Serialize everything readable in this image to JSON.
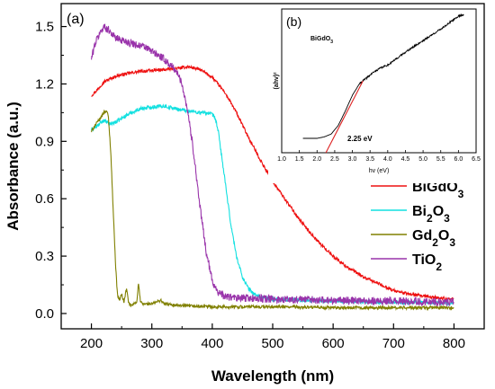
{
  "chart_data": [
    {
      "type": "line",
      "panel_label": "(a)",
      "xlabel": "Wavelength (nm)",
      "ylabel": "Absorbance (a.u.)",
      "xlim": [
        150,
        850
      ],
      "ylim": [
        -0.08,
        1.62
      ],
      "x_ticks": [
        200,
        300,
        400,
        500,
        600,
        700,
        800
      ],
      "x_tick_labels": [
        "200",
        "300",
        "400",
        "500",
        "600",
        "700",
        "800"
      ],
      "y_ticks": [
        0.0,
        0.3,
        0.6,
        0.9,
        1.2,
        1.5
      ],
      "y_tick_labels": [
        "0.0",
        "0.3",
        "0.6",
        "0.9",
        "1.2",
        "1.5"
      ],
      "grid": false,
      "legend_position": "right",
      "series": [
        {
          "name": "BiGdO3",
          "label": {
            "main": "BiGdO",
            "sub": "3"
          },
          "color": "#ee1111",
          "noise": 0.008,
          "x": [
            200,
            210,
            220,
            240,
            260,
            280,
            300,
            320,
            340,
            360,
            380,
            400,
            420,
            440,
            460,
            480,
            500,
            520,
            540,
            560,
            580,
            600,
            620,
            650,
            680,
            700,
            720,
            750,
            780,
            800
          ],
          "y": [
            1.14,
            1.17,
            1.21,
            1.24,
            1.255,
            1.265,
            1.27,
            1.275,
            1.28,
            1.29,
            1.275,
            1.235,
            1.16,
            1.05,
            0.92,
            0.8,
            0.69,
            0.6,
            0.51,
            0.43,
            0.36,
            0.3,
            0.25,
            0.19,
            0.15,
            0.12,
            0.105,
            0.09,
            0.08,
            0.075
          ]
        },
        {
          "name": "Bi2O3",
          "label": {
            "main": "Bi",
            "sub": "2",
            "main2": "O",
            "sub2": "3"
          },
          "color": "#11e0e0",
          "noise": 0.01,
          "x": [
            200,
            210,
            220,
            230,
            240,
            260,
            280,
            300,
            320,
            340,
            360,
            380,
            390,
            400,
            405,
            410,
            420,
            430,
            440,
            450,
            460,
            470,
            480,
            500,
            550,
            600,
            700,
            800
          ],
          "y": [
            0.96,
            0.98,
            1.01,
            0.99,
            1.0,
            1.04,
            1.07,
            1.08,
            1.085,
            1.07,
            1.06,
            1.05,
            1.05,
            1.04,
            1.02,
            0.95,
            0.72,
            0.48,
            0.3,
            0.19,
            0.13,
            0.1,
            0.085,
            0.075,
            0.07,
            0.065,
            0.06,
            0.055
          ]
        },
        {
          "name": "Gd2O3",
          "label": {
            "main": "Gd",
            "sub": "2",
            "main2": "O",
            "sub2": "3"
          },
          "color": "#808000",
          "noise": 0.008,
          "x": [
            200,
            205,
            210,
            215,
            220,
            225,
            228,
            232,
            236,
            240,
            243,
            246,
            250,
            254,
            258,
            262,
            266,
            270,
            275,
            278,
            281,
            285,
            300,
            315,
            320,
            350,
            400,
            500,
            600,
            700,
            800
          ],
          "y": [
            0.95,
            0.98,
            1.0,
            1.02,
            1.05,
            1.06,
            1.03,
            0.85,
            0.55,
            0.25,
            0.1,
            0.07,
            0.1,
            0.06,
            0.13,
            0.05,
            0.04,
            0.05,
            0.06,
            0.16,
            0.06,
            0.05,
            0.05,
            0.07,
            0.05,
            0.04,
            0.035,
            0.035,
            0.03,
            0.03,
            0.03
          ]
        },
        {
          "name": "TiO2",
          "label": {
            "main": "TiO",
            "sub": "2"
          },
          "color": "#9933aa",
          "noise": 0.02,
          "x": [
            200,
            205,
            210,
            215,
            220,
            225,
            230,
            240,
            250,
            260,
            270,
            280,
            290,
            300,
            310,
            320,
            330,
            340,
            350,
            360,
            370,
            380,
            390,
            400,
            410,
            420,
            440,
            460,
            500,
            600,
            700,
            800
          ],
          "y": [
            1.33,
            1.4,
            1.44,
            1.47,
            1.5,
            1.49,
            1.48,
            1.44,
            1.43,
            1.42,
            1.41,
            1.4,
            1.39,
            1.37,
            1.35,
            1.33,
            1.3,
            1.27,
            1.2,
            1.05,
            0.82,
            0.55,
            0.32,
            0.17,
            0.11,
            0.09,
            0.08,
            0.08,
            0.075,
            0.07,
            0.065,
            0.06
          ]
        }
      ]
    },
    {
      "type": "line",
      "panel_label": "(b)",
      "title": "BiGdO3",
      "title_label": {
        "main": "BiGdO",
        "sub": "3"
      },
      "xlabel": "hv (eV)",
      "ylabel": "(ahv)²",
      "xlim": [
        1.0,
        6.5
      ],
      "ylim": [
        0,
        1
      ],
      "x_ticks": [
        1.0,
        1.5,
        2.0,
        2.5,
        3.0,
        3.5,
        4.0,
        4.5,
        5.0,
        5.5,
        6.0,
        6.5
      ],
      "x_tick_labels": [
        "1.0",
        "1.5",
        "2.0",
        "2.5",
        "3.0",
        "3.5",
        "4.0",
        "4.5",
        "5.0",
        "5.5",
        "6.0",
        "6.5"
      ],
      "annotation": "2.25 eV",
      "series": [
        {
          "name": "",
          "color": "#000000",
          "noise": 0.006,
          "x": [
            1.6,
            1.8,
            2.0,
            2.2,
            2.4,
            2.6,
            2.8,
            3.0,
            3.2,
            3.4,
            3.6,
            3.8,
            4.0,
            4.5,
            5.0,
            5.5,
            6.0,
            6.15
          ],
          "y": [
            0.1,
            0.1,
            0.1,
            0.11,
            0.13,
            0.19,
            0.29,
            0.4,
            0.48,
            0.52,
            0.56,
            0.59,
            0.61,
            0.7,
            0.78,
            0.86,
            0.95,
            0.96
          ]
        },
        {
          "name": "",
          "color": "#dd2222",
          "dashed": true,
          "x": [
            2.25,
            3.3
          ],
          "y": [
            0.0,
            0.5
          ]
        }
      ]
    }
  ]
}
